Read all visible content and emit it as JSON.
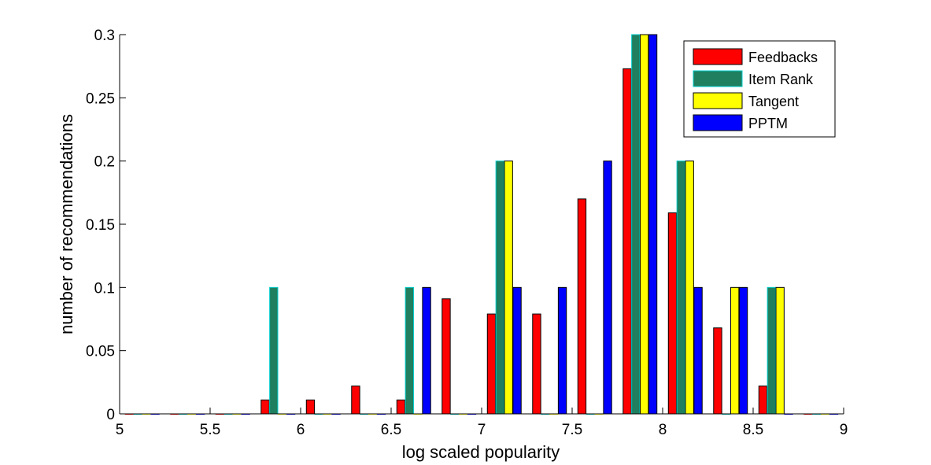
{
  "chart_data": {
    "type": "bar",
    "title": "",
    "xlabel": "log scaled popularity",
    "ylabel": "number of recommendations",
    "xlim": [
      5,
      9
    ],
    "ylim": [
      0,
      0.3
    ],
    "x_ticks": [
      "5",
      "5.5",
      "6",
      "6.5",
      "7",
      "7.5",
      "8",
      "8.5",
      "9"
    ],
    "y_ticks": [
      "0",
      "0.05",
      "0.1",
      "0.15",
      "0.2",
      "0.25",
      "0.3"
    ],
    "grid": false,
    "legend_position": "top-right",
    "bin_centers": [
      5.125,
      5.375,
      5.625,
      5.875,
      6.125,
      6.375,
      6.625,
      6.875,
      7.125,
      7.375,
      7.625,
      7.875,
      8.125,
      8.375,
      8.625,
      8.875
    ],
    "series": [
      {
        "name": "Feedbacks",
        "color": "#ff0000",
        "values": [
          0,
          0,
          0,
          0.011,
          0.011,
          0.022,
          0.011,
          0.091,
          0.079,
          0.079,
          0.17,
          0.273,
          0.159,
          0.068,
          0.022,
          0
        ]
      },
      {
        "name": "Item Rank",
        "color": "#1f7f5f",
        "edge": "#00cccc",
        "values": [
          0,
          0,
          0,
          0.1,
          0,
          0,
          0.1,
          0,
          0.2,
          0,
          0,
          0.3,
          0.2,
          0,
          0.1,
          0
        ]
      },
      {
        "name": "Tangent",
        "color": "#ffff00",
        "values": [
          0,
          0,
          0,
          0,
          0,
          0,
          0,
          0,
          0.2,
          0,
          0,
          0.3,
          0.2,
          0.1,
          0.1,
          0
        ]
      },
      {
        "name": "PPTM",
        "color": "#0000ff",
        "values": [
          0,
          0,
          0,
          0,
          0,
          0,
          0.1,
          0,
          0.1,
          0.1,
          0.2,
          0.3,
          0.1,
          0.1,
          0,
          0
        ]
      }
    ]
  }
}
